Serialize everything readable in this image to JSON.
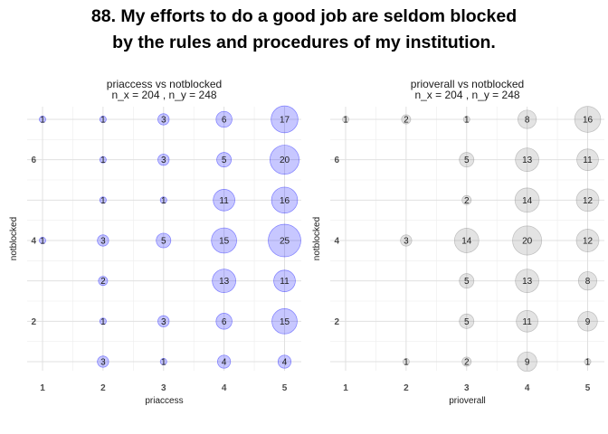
{
  "title_lines": [
    "88. My efforts to do a good job are seldom blocked",
    "by the rules and procedures of my institution."
  ],
  "chart_data": [
    {
      "type": "scatter",
      "variant": "bubble-count",
      "title": "priaccess vs notblocked",
      "subtitle": "n_x = 204 , n_y = 248",
      "xlabel": "priaccess",
      "ylabel": "notblocked",
      "x_ticks": [
        "1",
        "2",
        "3",
        "4",
        "5"
      ],
      "y_ticks": [
        "2",
        "4",
        "6"
      ],
      "xlim": [
        0.95,
        5.1
      ],
      "ylim": [
        0.7,
        7.3
      ],
      "point_color": "#0000ff",
      "points": [
        {
          "x": 1,
          "y": 7,
          "count": 1
        },
        {
          "x": 2,
          "y": 7,
          "count": 1
        },
        {
          "x": 3,
          "y": 7,
          "count": 3
        },
        {
          "x": 4,
          "y": 7,
          "count": 6
        },
        {
          "x": 5,
          "y": 7,
          "count": 17
        },
        {
          "x": 2,
          "y": 6,
          "count": 1
        },
        {
          "x": 3,
          "y": 6,
          "count": 3
        },
        {
          "x": 4,
          "y": 6,
          "count": 5
        },
        {
          "x": 5,
          "y": 6,
          "count": 20
        },
        {
          "x": 2,
          "y": 5,
          "count": 1
        },
        {
          "x": 3,
          "y": 5,
          "count": 1
        },
        {
          "x": 4,
          "y": 5,
          "count": 11
        },
        {
          "x": 5,
          "y": 5,
          "count": 16
        },
        {
          "x": 1,
          "y": 4,
          "count": 1
        },
        {
          "x": 2,
          "y": 4,
          "count": 3
        },
        {
          "x": 3,
          "y": 4,
          "count": 5
        },
        {
          "x": 4,
          "y": 4,
          "count": 15
        },
        {
          "x": 5,
          "y": 4,
          "count": 25
        },
        {
          "x": 2,
          "y": 3,
          "count": 2
        },
        {
          "x": 4,
          "y": 3,
          "count": 13
        },
        {
          "x": 5,
          "y": 3,
          "count": 11
        },
        {
          "x": 2,
          "y": 2,
          "count": 1
        },
        {
          "x": 3,
          "y": 2,
          "count": 3
        },
        {
          "x": 4,
          "y": 2,
          "count": 6
        },
        {
          "x": 5,
          "y": 2,
          "count": 15
        },
        {
          "x": 2,
          "y": 1,
          "count": 3
        },
        {
          "x": 3,
          "y": 1,
          "count": 1
        },
        {
          "x": 4,
          "y": 1,
          "count": 4
        },
        {
          "x": 5,
          "y": 1,
          "count": 4
        }
      ]
    },
    {
      "type": "scatter",
      "variant": "bubble-count",
      "title": "prioverall vs notblocked",
      "subtitle": "n_x = 204 , n_y = 248",
      "xlabel": "prioverall",
      "ylabel": "notblocked",
      "x_ticks": [
        "1",
        "2",
        "3",
        "4",
        "5"
      ],
      "y_ticks": [
        "2",
        "4",
        "6"
      ],
      "xlim": [
        0.95,
        5.1
      ],
      "ylim": [
        0.7,
        7.3
      ],
      "point_color": "#808080",
      "points": [
        {
          "x": 1,
          "y": 7,
          "count": 1
        },
        {
          "x": 2,
          "y": 7,
          "count": 2
        },
        {
          "x": 3,
          "y": 7,
          "count": 1
        },
        {
          "x": 4,
          "y": 7,
          "count": 8
        },
        {
          "x": 5,
          "y": 7,
          "count": 16
        },
        {
          "x": 3,
          "y": 6,
          "count": 5
        },
        {
          "x": 4,
          "y": 6,
          "count": 13
        },
        {
          "x": 5,
          "y": 6,
          "count": 11
        },
        {
          "x": 3,
          "y": 5,
          "count": 2
        },
        {
          "x": 4,
          "y": 5,
          "count": 14
        },
        {
          "x": 5,
          "y": 5,
          "count": 12
        },
        {
          "x": 2,
          "y": 4,
          "count": 3
        },
        {
          "x": 3,
          "y": 4,
          "count": 14
        },
        {
          "x": 4,
          "y": 4,
          "count": 20
        },
        {
          "x": 5,
          "y": 4,
          "count": 12
        },
        {
          "x": 3,
          "y": 3,
          "count": 5
        },
        {
          "x": 4,
          "y": 3,
          "count": 13
        },
        {
          "x": 5,
          "y": 3,
          "count": 8
        },
        {
          "x": 3,
          "y": 2,
          "count": 5
        },
        {
          "x": 4,
          "y": 2,
          "count": 11
        },
        {
          "x": 5,
          "y": 2,
          "count": 9
        },
        {
          "x": 2,
          "y": 1,
          "count": 1
        },
        {
          "x": 3,
          "y": 1,
          "count": 2
        },
        {
          "x": 4,
          "y": 1,
          "count": 9
        },
        {
          "x": 5,
          "y": 1,
          "count": 1
        }
      ]
    }
  ]
}
